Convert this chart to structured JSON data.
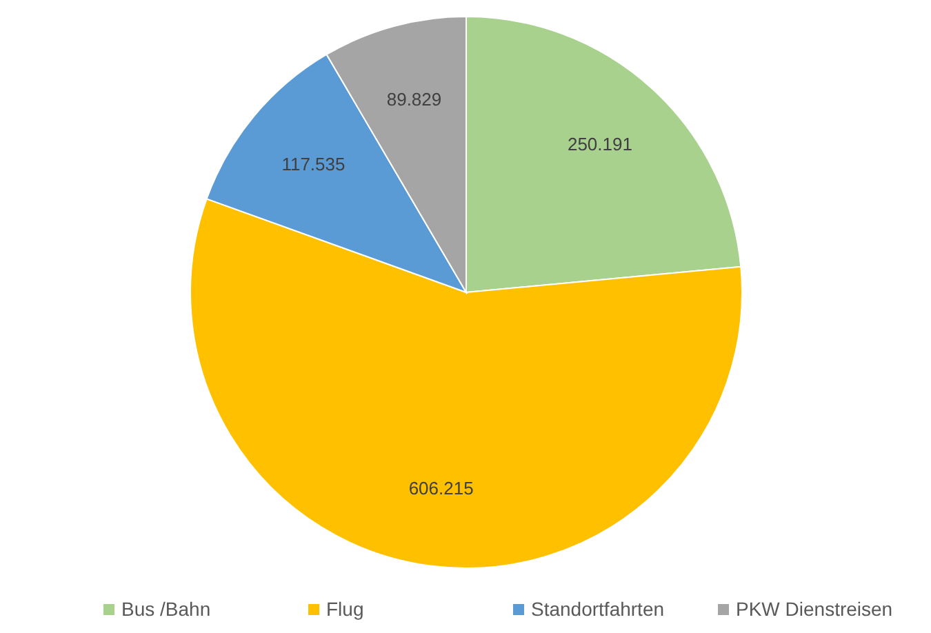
{
  "chart_data": {
    "type": "pie",
    "categories": [
      "Bus /Bahn",
      "Flug",
      "Standortfahrten",
      "PKW Dienstreisen"
    ],
    "values": [
      250191,
      606215,
      117535,
      89829
    ],
    "value_labels": [
      "250.191",
      "606.215",
      "117.535",
      "89.829"
    ],
    "colors": [
      "#a9d18e",
      "#ffc000",
      "#5b9bd5",
      "#a5a5a5"
    ],
    "data_labels": true,
    "legend": "bottom"
  }
}
